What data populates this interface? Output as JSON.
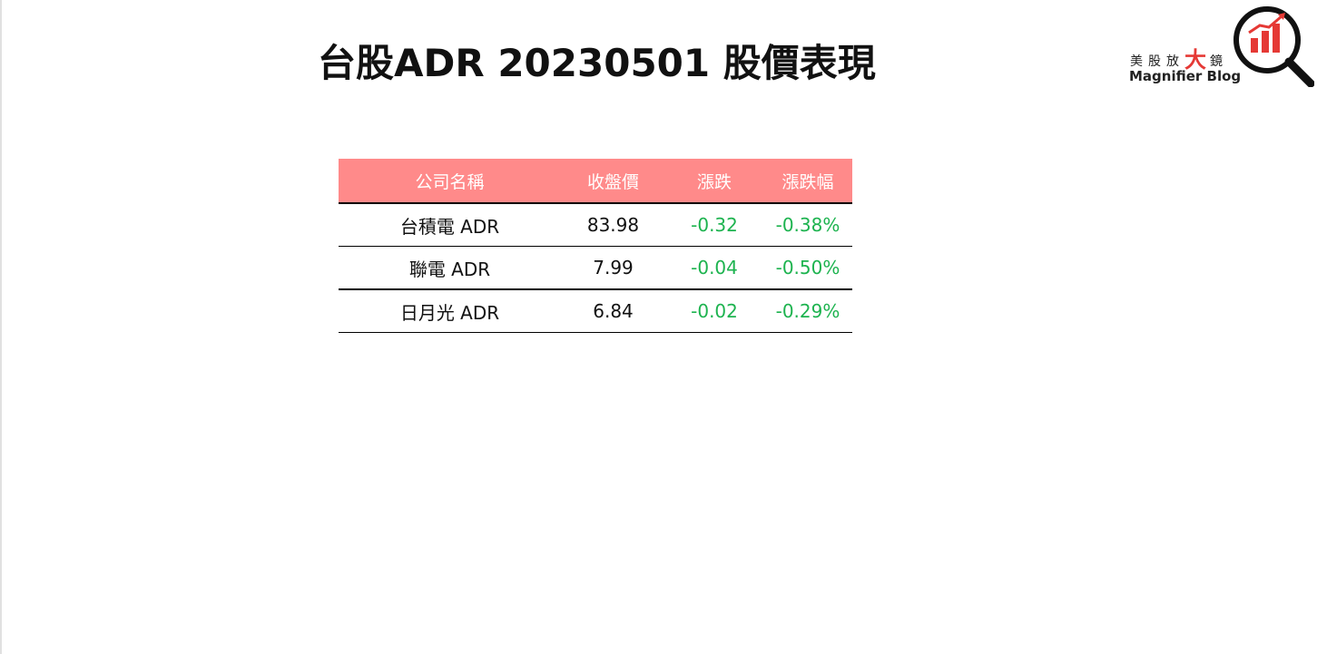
{
  "header": {
    "title": "台股ADR 20230501 股價表現"
  },
  "logo": {
    "chars": [
      "美",
      "股",
      "放",
      "大",
      "鏡"
    ],
    "english": "Magnifier Blog",
    "accent_color": "#e53935"
  },
  "table": {
    "columns": [
      "公司名稱",
      "收盤價",
      "漲跌",
      "漲跌幅"
    ],
    "header_bg": "#ff8a8a",
    "negative_color": "#1db34f",
    "rows": [
      {
        "name": "台積電 ADR",
        "close": "83.98",
        "change": "-0.32",
        "pct": "-0.38%"
      },
      {
        "name": "聯電 ADR",
        "close": "7.99",
        "change": "-0.04",
        "pct": "-0.50%"
      },
      {
        "name": "日月光 ADR",
        "close": "6.84",
        "change": "-0.02",
        "pct": "-0.29%"
      }
    ]
  }
}
